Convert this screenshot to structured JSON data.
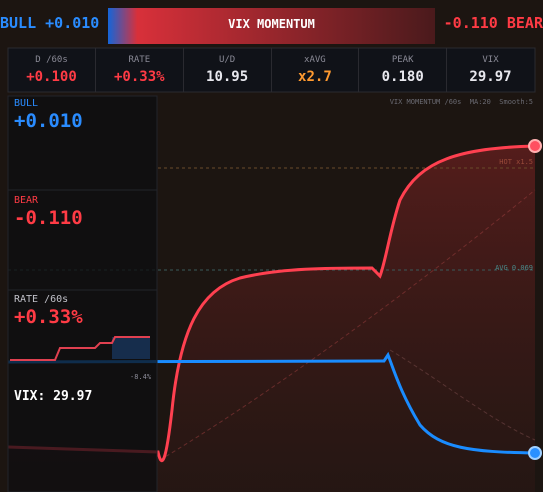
{
  "header": {
    "bull": "BULL +0.010",
    "title": "VIX MOMENTUM",
    "bear": "-0.110 BEAR"
  },
  "stats": [
    {
      "label": "D /60s",
      "value": "+0.100"
    },
    {
      "label": "RATE",
      "value": "+0.33%"
    },
    {
      "label": "U/D",
      "value": "10.95"
    },
    {
      "label": "xAVG",
      "value": "x2.7"
    },
    {
      "label": "PEAK",
      "value": "0.180"
    },
    {
      "label": "VIX",
      "value": "29.97"
    }
  ],
  "chart": {
    "caption": "VIX MOMENTUM /60s  MA:20  Smooth:5",
    "hot_label": "HOT x1.5",
    "avg_label": "AVG 0.069",
    "mini_label": "-8.4%"
  },
  "panel": {
    "bull_label": "BULL",
    "bull_value": "+0.010",
    "bear_label": "BEAR",
    "bear_value": "-0.110",
    "rate_label": "RATE /60s",
    "rate_value": "+0.33%",
    "vix": "VIX: 29.97"
  }
}
